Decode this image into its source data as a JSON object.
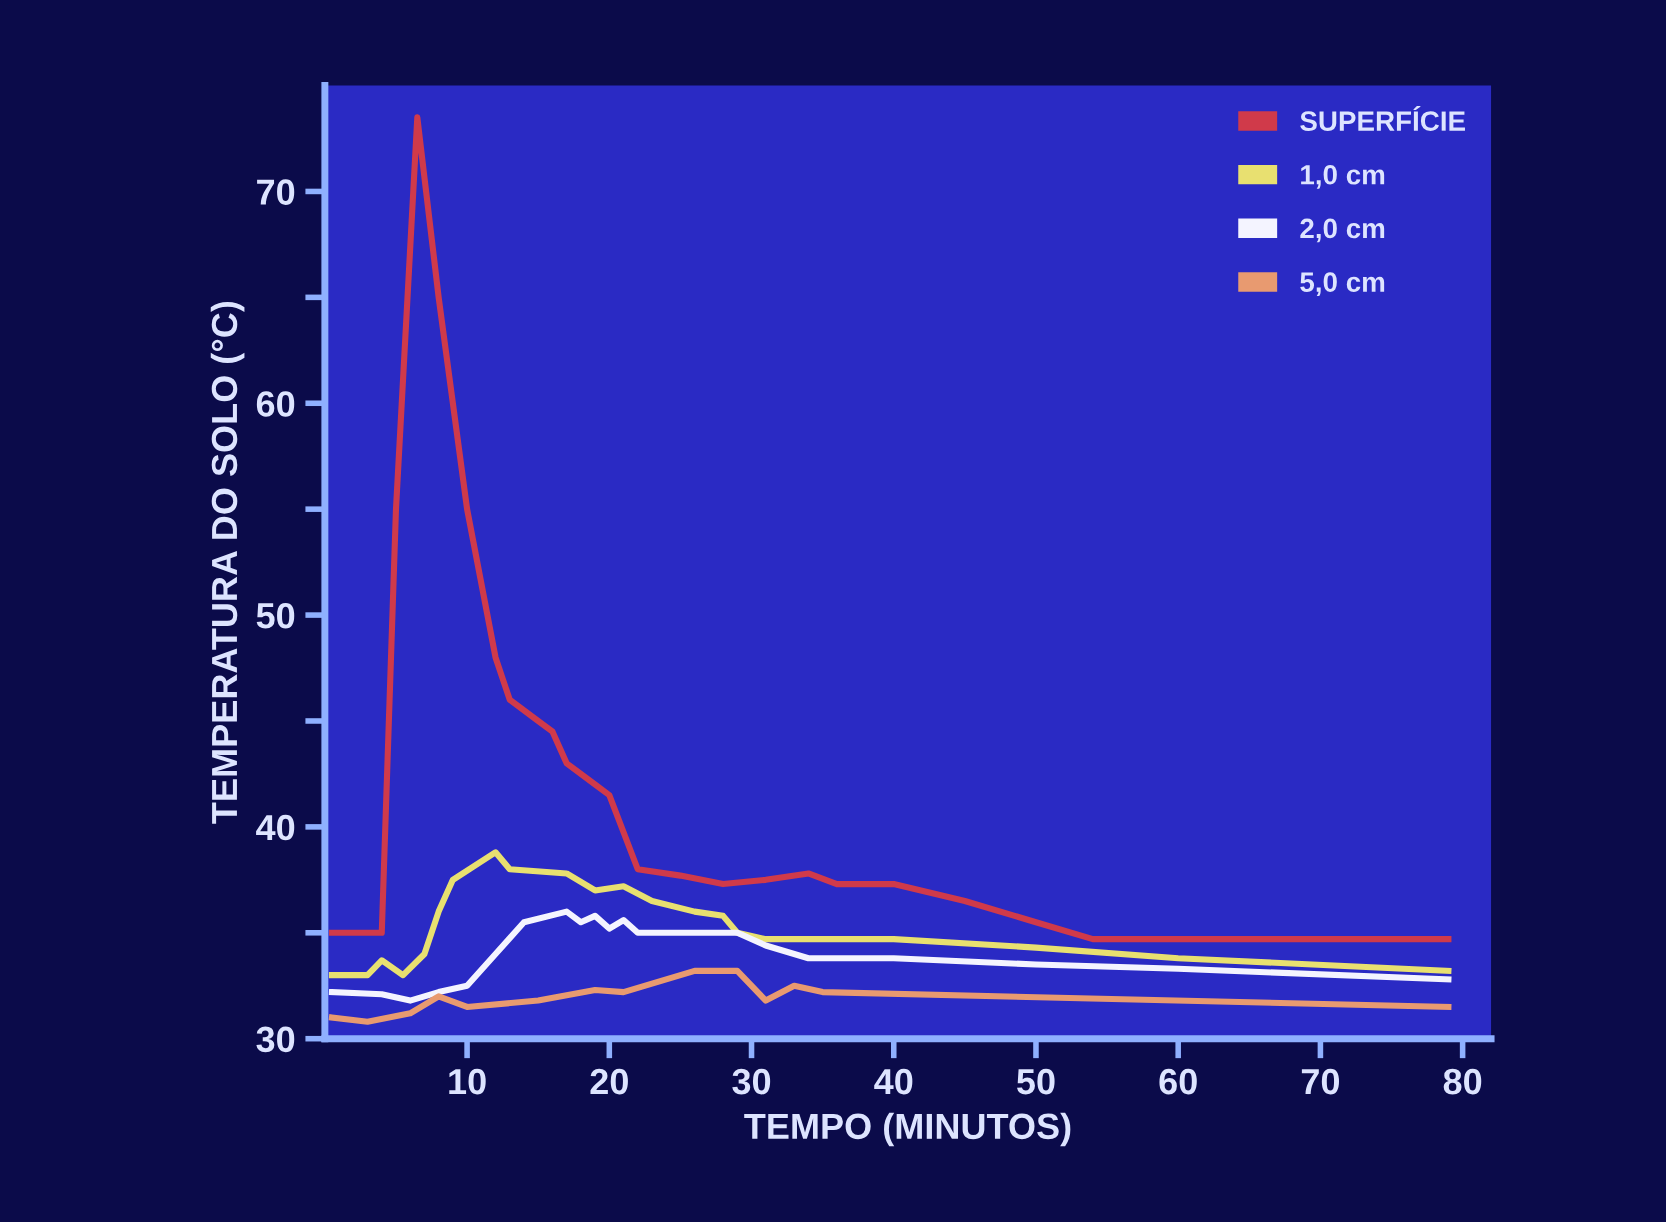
{
  "chart_data": {
    "type": "line",
    "xlabel": "TEMPO (MINUTOS)",
    "ylabel": "TEMPERATURA DO SOLO (°C)",
    "xlim": [
      0,
      82
    ],
    "ylim": [
      30,
      75
    ],
    "xticks": [
      10,
      20,
      30,
      40,
      50,
      60,
      70,
      80
    ],
    "yticks": [
      30,
      {
        "value": 35,
        "label": null
      },
      40,
      {
        "value": 45,
        "label": null
      },
      50,
      {
        "value": 55,
        "label": null
      },
      60,
      {
        "value": 65,
        "label": null
      },
      70
    ],
    "grid": false,
    "legend": "top right",
    "marker": "none",
    "line_style": "solid",
    "series": [
      {
        "name": "SUPERFÍCIE",
        "color": "#d03a4a",
        "x": [
          0.5,
          4,
          5,
          6.5,
          8,
          10,
          12,
          13,
          15,
          16,
          17,
          19,
          20,
          22,
          25,
          28,
          31,
          34,
          36,
          40,
          45,
          50,
          54,
          60,
          70,
          79
        ],
        "values": [
          35,
          35,
          55,
          73.5,
          65,
          55,
          48,
          46,
          45,
          44.5,
          43,
          42,
          41.5,
          38,
          37.7,
          37.3,
          37.5,
          37.8,
          37.3,
          37.3,
          36.5,
          35.5,
          34.7,
          34.7,
          34.7,
          34.7
        ]
      },
      {
        "name": "1,0 cm",
        "color": "#e8e070",
        "x": [
          0.5,
          3,
          4,
          5.5,
          7,
          8,
          9,
          12,
          13,
          17,
          19,
          21,
          23,
          26,
          28,
          29,
          31,
          40,
          50,
          60,
          79
        ],
        "values": [
          33,
          33,
          33.7,
          33,
          34,
          36,
          37.5,
          38.8,
          38,
          37.8,
          37,
          37.2,
          36.5,
          36,
          35.8,
          35,
          34.7,
          34.7,
          34.3,
          33.8,
          33.2
        ]
      },
      {
        "name": "2,0 cm",
        "color": "#f4f4ff",
        "x": [
          0.5,
          4,
          6,
          8,
          10,
          12,
          14,
          17,
          18,
          19,
          20,
          21,
          22,
          29,
          31,
          34,
          40,
          50,
          60,
          79
        ],
        "values": [
          32.2,
          32.1,
          31.8,
          32.2,
          32.5,
          34,
          35.5,
          36,
          35.5,
          35.8,
          35.2,
          35.6,
          35,
          35,
          34.4,
          33.8,
          33.8,
          33.5,
          33.3,
          32.8
        ]
      },
      {
        "name": "5,0 cm",
        "color": "#e89a70",
        "x": [
          0.5,
          3,
          6,
          8,
          10,
          15,
          19,
          21,
          26,
          29,
          31,
          33,
          35,
          79
        ],
        "values": [
          31,
          30.8,
          31.2,
          32,
          31.5,
          31.8,
          32.3,
          32.2,
          33.2,
          33.2,
          31.8,
          32.5,
          32.2,
          31.5
        ]
      }
    ]
  }
}
